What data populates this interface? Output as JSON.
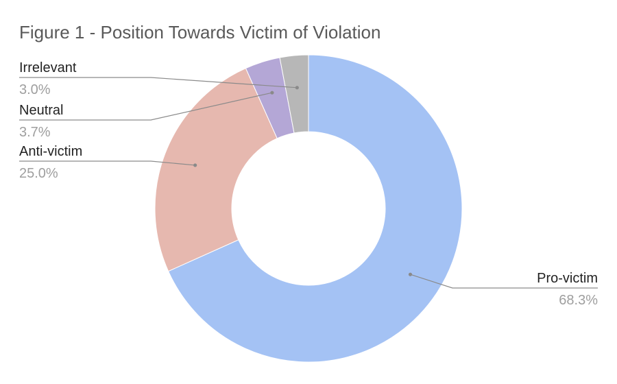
{
  "chart_data": {
    "type": "pie",
    "style": "donut",
    "title": "Figure 1 - Position Towards Victim of Violation",
    "slices": [
      {
        "label": "Pro-victim",
        "value": 68.3,
        "value_label": "68.3%",
        "color": "#a4c2f4"
      },
      {
        "label": "Anti-victim",
        "value": 25.0,
        "value_label": "25.0%",
        "color": "#e6b8af"
      },
      {
        "label": "Neutral",
        "value": 3.7,
        "value_label": "3.7%",
        "color": "#b4a7d6"
      },
      {
        "label": "Irrelevant",
        "value": 3.0,
        "value_label": "3.0%",
        "color": "#b7b7b7"
      }
    ],
    "legend": "none (callout labels)"
  }
}
